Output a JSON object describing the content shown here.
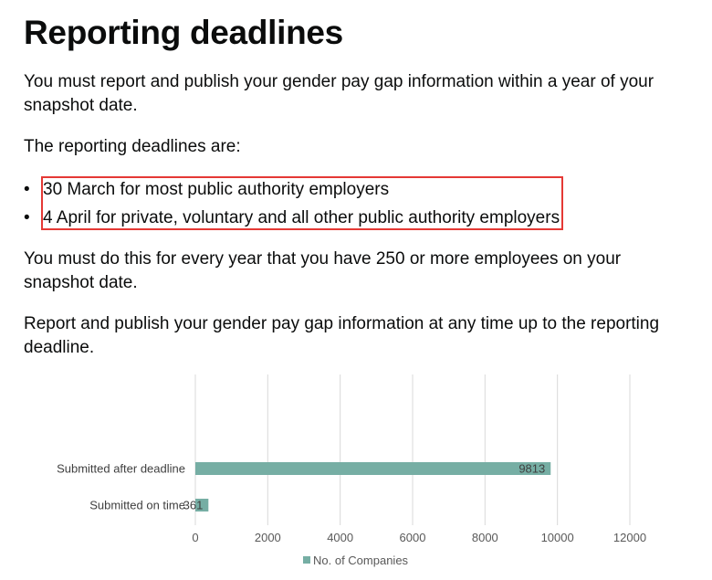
{
  "heading": "Reporting deadlines",
  "paragraphs": {
    "intro": "You must report and publish your gender pay gap information within a year of your snapshot date.",
    "lead": "The reporting deadlines are:",
    "every_year": "You must do this for every year that you have 250 or more employees on your snapshot date.",
    "anytime": "Report and publish your gender pay gap information at any time up to the reporting deadline."
  },
  "deadlines": [
    "30 March for most public authority employers",
    "4 April for private, voluntary and all other public authority employers"
  ],
  "bullet_glyph": "•",
  "colors": {
    "highlight_border": "#e53935",
    "bar": "#76aea4",
    "grid": "#d9d9d9"
  },
  "chart_data": {
    "type": "bar",
    "orientation": "horizontal",
    "categories": [
      "Submitted after deadline",
      "Submitted on time"
    ],
    "series": [
      {
        "name": "No. of Companies",
        "values": [
          9813,
          361
        ]
      }
    ],
    "xlim": [
      0,
      12000
    ],
    "xticks": [
      0,
      2000,
      4000,
      6000,
      8000,
      10000,
      12000
    ],
    "grid": true,
    "legend": "bottom"
  }
}
